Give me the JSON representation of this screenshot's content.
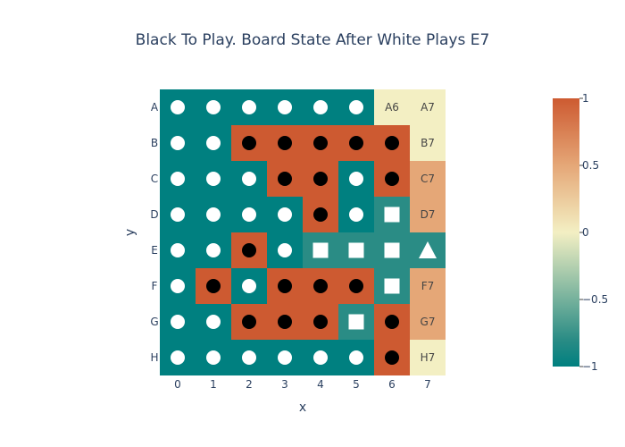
{
  "chart_data": {
    "type": "heatmap",
    "title": "Black To Play. Board State After White Plays E7",
    "xlabel": "x",
    "ylabel": "y",
    "x": [
      "0",
      "1",
      "2",
      "3",
      "4",
      "5",
      "6",
      "7"
    ],
    "y": [
      "A",
      "B",
      "C",
      "D",
      "E",
      "F",
      "G",
      "H"
    ],
    "z": [
      [
        -1,
        -1,
        -1,
        -1,
        -1,
        -1,
        0,
        0
      ],
      [
        -1,
        -1,
        1,
        1,
        1,
        1,
        1,
        0
      ],
      [
        -1,
        -1,
        -1,
        1,
        1,
        -1,
        1,
        0.5
      ],
      [
        -1,
        -1,
        -1,
        -1,
        1,
        -1,
        -0.8,
        0.5
      ],
      [
        -1,
        -1,
        1,
        -1,
        -0.8,
        -0.8,
        -0.8,
        -0.8
      ],
      [
        -1,
        1,
        -1,
        1,
        1,
        1,
        -0.8,
        0.5
      ],
      [
        -1,
        -1,
        1,
        1,
        1,
        -0.8,
        1,
        0.5
      ],
      [
        -1,
        -1,
        -1,
        -1,
        -1,
        -1,
        1,
        0
      ]
    ],
    "markers": [
      [
        "white",
        "white",
        "white",
        "white",
        "white",
        "white",
        "",
        ""
      ],
      [
        "white",
        "white",
        "black",
        "black",
        "black",
        "black",
        "black",
        ""
      ],
      [
        "white",
        "white",
        "white",
        "black",
        "black",
        "white",
        "black",
        ""
      ],
      [
        "white",
        "white",
        "white",
        "white",
        "black",
        "white",
        "white-square",
        ""
      ],
      [
        "white",
        "white",
        "black",
        "white",
        "white-square",
        "white-square",
        "white-square",
        "white-triangle"
      ],
      [
        "white",
        "black",
        "white",
        "black",
        "black",
        "black",
        "white-square",
        ""
      ],
      [
        "white",
        "white",
        "black",
        "black",
        "black",
        "white-square",
        "black",
        ""
      ],
      [
        "white",
        "white",
        "white",
        "white",
        "white",
        "white",
        "black",
        ""
      ]
    ],
    "cell_labels": [
      [
        "",
        "",
        "",
        "",
        "",
        "",
        "A6",
        "A7"
      ],
      [
        "",
        "",
        "",
        "",
        "",
        "",
        "",
        "B7"
      ],
      [
        "",
        "",
        "",
        "",
        "",
        "",
        "",
        "C7"
      ],
      [
        "",
        "",
        "",
        "",
        "",
        "",
        "",
        "D7"
      ],
      [
        "",
        "",
        "",
        "",
        "",
        "",
        "",
        ""
      ],
      [
        "",
        "",
        "",
        "",
        "",
        "",
        "",
        "F7"
      ],
      [
        "",
        "",
        "",
        "",
        "",
        "",
        "",
        "G7"
      ],
      [
        "",
        "",
        "",
        "",
        "",
        "",
        "",
        "H7"
      ]
    ],
    "colorscale": [
      [
        0,
        "#008080"
      ],
      [
        0.1,
        "#2a8c85"
      ],
      [
        0.5,
        "#f3efc3"
      ],
      [
        0.75,
        "#e5a777"
      ],
      [
        1,
        "#cd5a31"
      ]
    ],
    "colorbar": {
      "range": [
        -1,
        1
      ],
      "ticks": [
        1,
        0.5,
        0,
        -0.5,
        -1
      ],
      "tick_labels": [
        "1",
        "0.5",
        "0",
        "−0.5",
        "−1"
      ]
    },
    "marker_colors": {
      "white": "#ffffff",
      "black": "#000000"
    }
  }
}
